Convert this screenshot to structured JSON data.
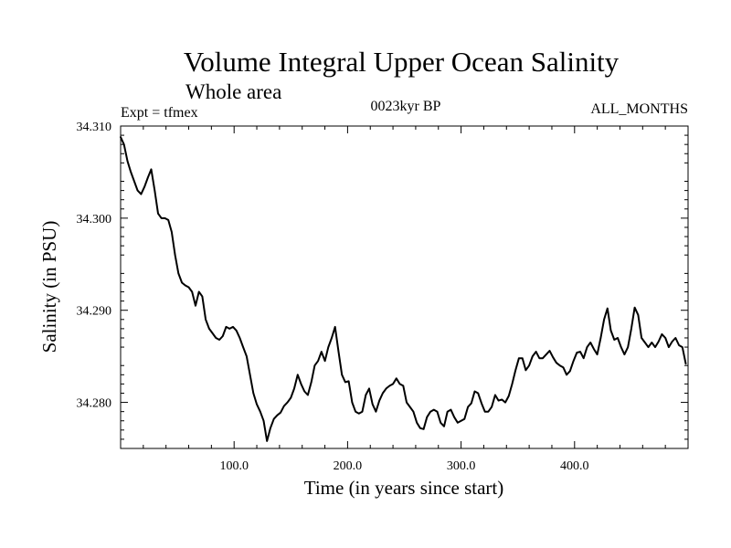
{
  "chart_data": {
    "type": "line",
    "title": "Volume Integral Upper Ocean Salinity",
    "subtitle": "Whole area",
    "experiment_label": "Expt = tfmex",
    "period_label": "0023kyr BP",
    "months_label": "ALL_MONTHS",
    "xlabel": "Time (in years since start)",
    "ylabel": "Salinity (in PSU)",
    "xlim": [
      0,
      500
    ],
    "ylim": [
      34.275,
      34.31
    ],
    "x_ticks": [
      100,
      200,
      300,
      400
    ],
    "x_tick_labels": [
      "100.0",
      "200.0",
      "300.0",
      "400.0"
    ],
    "y_ticks": [
      34.28,
      34.29,
      34.3,
      34.31
    ],
    "y_tick_labels": [
      "34.280",
      "34.290",
      "34.300",
      "34.310"
    ],
    "grid": false,
    "line_color": "#000000",
    "series": [
      {
        "x": [
          0,
          3,
          6,
          9,
          12,
          15,
          18,
          21,
          24,
          27,
          30,
          33,
          36,
          39,
          42,
          45,
          48,
          51,
          54,
          57,
          60,
          63,
          66,
          69,
          72,
          75,
          78,
          81,
          84,
          87,
          90,
          93,
          96,
          99,
          102,
          105,
          108,
          111,
          114,
          117,
          120,
          123,
          126,
          129,
          132,
          135,
          138,
          141,
          144,
          147,
          150,
          153,
          156,
          159,
          162,
          165,
          168,
          171,
          174,
          177,
          180,
          183,
          186,
          189,
          192,
          195,
          198,
          201,
          204,
          207,
          210,
          213,
          216,
          219,
          222,
          225,
          228,
          231,
          234,
          237,
          240,
          243,
          246,
          249,
          252,
          255,
          258,
          261,
          264,
          267,
          270,
          273,
          276,
          279,
          282,
          285,
          288,
          291,
          294,
          297,
          300,
          303,
          306,
          309,
          312,
          315,
          318,
          321,
          324,
          327,
          330,
          333,
          336,
          339,
          342,
          345,
          348,
          351,
          354,
          357,
          360,
          363,
          366,
          369,
          372,
          375,
          378,
          381,
          384,
          387,
          390,
          393,
          396,
          399,
          402,
          405,
          408,
          411,
          414,
          417,
          420,
          423,
          426,
          429,
          432,
          435,
          438,
          441,
          444,
          447,
          450,
          453,
          456,
          459,
          462,
          465,
          468,
          471,
          474,
          477,
          480,
          483,
          486,
          489,
          492,
          495,
          498
        ],
        "y": [
          34.3088,
          34.308,
          34.3062,
          34.305,
          34.304,
          34.303,
          34.3026,
          34.3034,
          34.3044,
          34.3053,
          34.303,
          34.3005,
          34.3,
          34.3,
          34.2998,
          34.2985,
          34.296,
          34.294,
          34.293,
          34.2927,
          34.2925,
          34.292,
          34.2905,
          34.292,
          34.2915,
          34.289,
          34.288,
          34.2875,
          34.287,
          34.2868,
          34.2872,
          34.2882,
          34.288,
          34.2882,
          34.2878,
          34.287,
          34.286,
          34.285,
          34.283,
          34.281,
          34.2798,
          34.279,
          34.278,
          34.2758,
          34.2772,
          34.2782,
          34.2786,
          34.2789,
          34.2796,
          34.28,
          34.2805,
          34.2815,
          34.283,
          34.282,
          34.2812,
          34.2808,
          34.2822,
          34.284,
          34.2845,
          34.2855,
          34.2845,
          34.286,
          34.287,
          34.2882,
          34.2855,
          34.283,
          34.2822,
          34.2823,
          34.28,
          34.279,
          34.2788,
          34.279,
          34.2808,
          34.2815,
          34.2798,
          34.279,
          34.2802,
          34.281,
          34.2815,
          34.2818,
          34.282,
          34.2826,
          34.282,
          34.2818,
          34.28,
          34.2795,
          34.279,
          34.2778,
          34.2772,
          34.2771,
          34.2784,
          34.279,
          34.2792,
          34.279,
          34.2778,
          34.2774,
          34.279,
          34.2792,
          34.2784,
          34.2778,
          34.278,
          34.2782,
          34.2795,
          34.2799,
          34.2812,
          34.281,
          34.2799,
          34.279,
          34.279,
          34.2795,
          34.2808,
          34.2802,
          34.2803,
          34.28,
          34.2807,
          34.282,
          34.2835,
          34.2848,
          34.2848,
          34.2835,
          34.284,
          34.285,
          34.2855,
          34.2848,
          34.2848,
          34.2852,
          34.2856,
          34.2849,
          34.2843,
          34.284,
          34.2838,
          34.283,
          34.2834,
          34.2845,
          34.2854,
          34.2855,
          34.2848,
          34.286,
          34.2865,
          34.2858,
          34.2852,
          34.287,
          34.289,
          34.2902,
          34.2878,
          34.2868,
          34.287,
          34.286,
          34.2852,
          34.286,
          34.288,
          34.2903,
          34.2895,
          34.287,
          34.2865,
          34.286,
          34.2865,
          34.286,
          34.2866,
          34.2874,
          34.287,
          34.286,
          34.2866,
          34.287,
          34.2862,
          34.286,
          34.2842
        ]
      }
    ]
  }
}
